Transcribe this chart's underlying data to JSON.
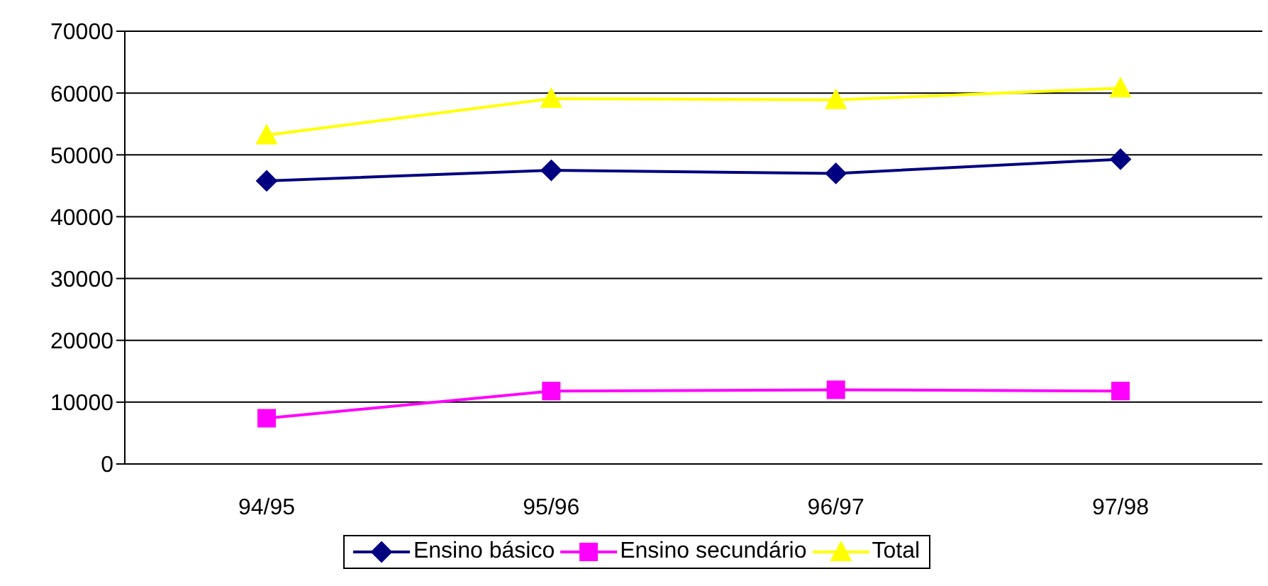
{
  "chart_data": {
    "type": "line",
    "categories": [
      "94/95",
      "95/96",
      "96/97",
      "97/98"
    ],
    "series": [
      {
        "name": "Ensino básico",
        "color": "#000080",
        "marker": "diamond",
        "values": [
          45800,
          47500,
          47000,
          49300
        ]
      },
      {
        "name": "Ensino secundário",
        "color": "#ff00ff",
        "marker": "square",
        "values": [
          7400,
          11800,
          12000,
          11800
        ]
      },
      {
        "name": "Total",
        "color": "#ffff00",
        "marker": "triangle",
        "values": [
          53200,
          59100,
          58900,
          60800
        ]
      }
    ],
    "ylim": [
      0,
      70000
    ],
    "yticks": [
      0,
      10000,
      20000,
      30000,
      40000,
      50000,
      60000,
      70000
    ],
    "grid": "y",
    "legend": "bottom"
  }
}
